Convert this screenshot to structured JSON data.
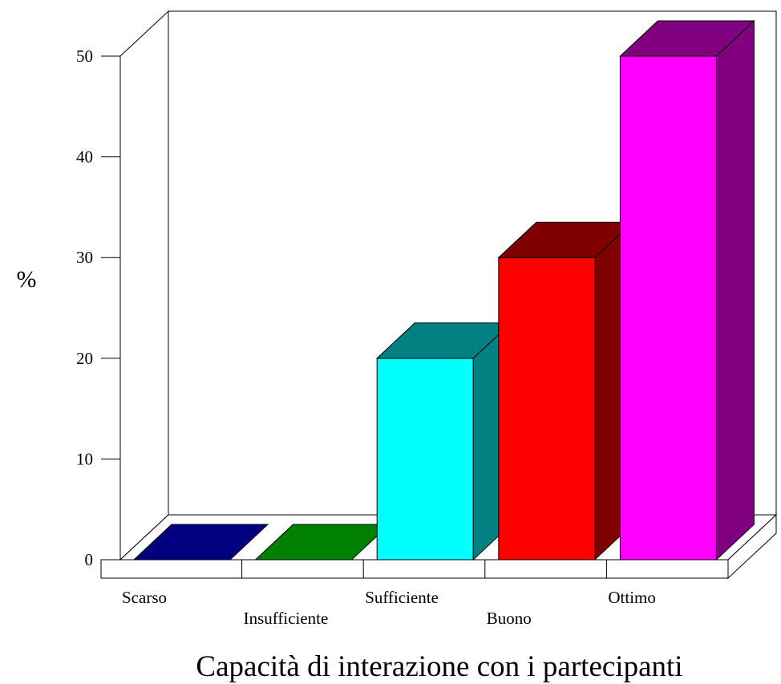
{
  "chart_data": {
    "type": "bar",
    "categories": [
      "Scarso",
      "Insufficiente",
      "Sufficiente",
      "Buono",
      "Ottimo"
    ],
    "values": [
      0,
      0,
      20,
      30,
      50
    ],
    "title": "",
    "xlabel": "Capacità di interazione con i partecipanti",
    "ylabel": "%",
    "ylim": [
      0,
      50
    ],
    "yticks": [
      0,
      10,
      20,
      30,
      40,
      50
    ],
    "grid": false,
    "legend": "none",
    "colors": {
      "front": [
        "#000080",
        "#008000",
        "#00ffff",
        "#ff0000",
        "#ff00ff"
      ],
      "side": [
        "#000080",
        "#008000",
        "#008080",
        "#800000",
        "#800080"
      ]
    }
  }
}
